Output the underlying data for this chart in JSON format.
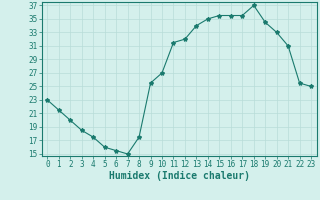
{
  "x": [
    0,
    1,
    2,
    3,
    4,
    5,
    6,
    7,
    8,
    9,
    10,
    11,
    12,
    13,
    14,
    15,
    16,
    17,
    18,
    19,
    20,
    21,
    22,
    23
  ],
  "y": [
    23,
    21.5,
    20,
    18.5,
    17.5,
    16,
    15.5,
    15,
    17.5,
    25.5,
    27,
    31.5,
    32,
    34,
    35,
    35.5,
    35.5,
    35.5,
    37,
    34.5,
    33,
    31,
    25.5,
    25
  ],
  "line_color": "#1a7a6e",
  "marker": "*",
  "marker_size": 3,
  "bg_color": "#d4f0ec",
  "grid_color": "#b8ddd8",
  "xlabel": "Humidex (Indice chaleur)",
  "ylim": [
    15,
    37
  ],
  "xlim": [
    -0.5,
    23.5
  ],
  "yticks": [
    15,
    17,
    19,
    21,
    23,
    25,
    27,
    29,
    31,
    33,
    35,
    37
  ],
  "xticks": [
    0,
    1,
    2,
    3,
    4,
    5,
    6,
    7,
    8,
    9,
    10,
    11,
    12,
    13,
    14,
    15,
    16,
    17,
    18,
    19,
    20,
    21,
    22,
    23
  ],
  "tick_color": "#1a7a6e",
  "label_fontsize": 5.5,
  "xlabel_fontsize": 7.0
}
